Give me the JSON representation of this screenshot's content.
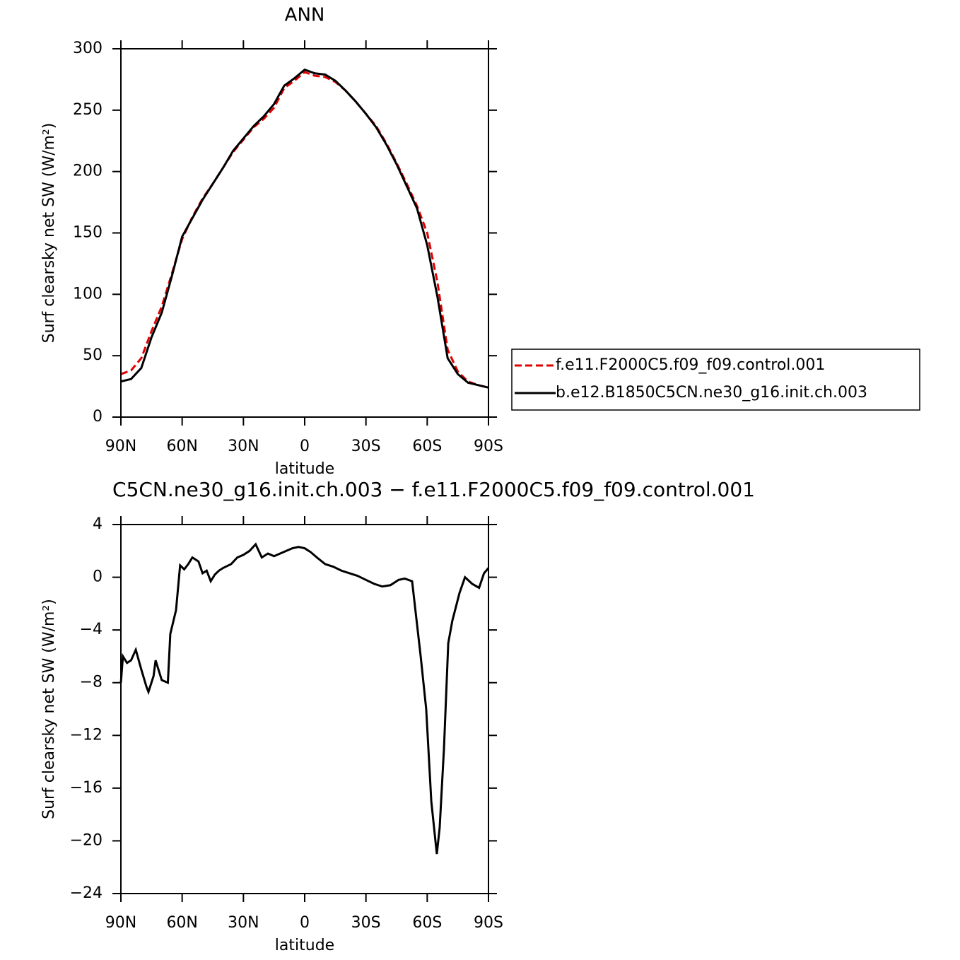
{
  "chart_data": [
    {
      "type": "line",
      "title": "ANN",
      "xlabel": "latitude",
      "ylabel": "Surf clearsky net SW (W/m²)",
      "x": [
        90,
        85,
        80,
        75,
        70,
        65,
        60,
        55,
        50,
        45,
        40,
        35,
        30,
        25,
        20,
        15,
        10,
        5,
        0,
        -5,
        -10,
        -15,
        -20,
        -25,
        -30,
        -35,
        -40,
        -45,
        -50,
        -55,
        -60,
        -65,
        -70,
        -75,
        -80,
        -85,
        -90
      ],
      "series": [
        {
          "name": "f.e11.F2000C5.f09_f09.control.001",
          "color": "#e00000",
          "dashed": true,
          "values": [
            35,
            38,
            48,
            70,
            90,
            117,
            145,
            163,
            178,
            190,
            203,
            216,
            226,
            236,
            243,
            252,
            268,
            274,
            281,
            278,
            277,
            273,
            266,
            257,
            247,
            237,
            223,
            207,
            190,
            172,
            150,
            110,
            55,
            37,
            29,
            26,
            24
          ]
        },
        {
          "name": "b.e12.B1850C5CN.ne30_g16.init.ch.003",
          "color": "#000000",
          "dashed": false,
          "values": [
            29,
            31,
            40,
            65,
            85,
            115,
            147,
            162,
            177,
            190,
            203,
            217,
            227,
            237,
            245,
            255,
            270,
            276,
            283,
            280,
            279,
            274,
            266,
            257,
            247,
            236,
            222,
            206,
            188,
            170,
            140,
            98,
            48,
            35,
            28,
            26,
            24
          ]
        }
      ],
      "xlim": [
        90,
        -90
      ],
      "xticks": [
        {
          "value": 90,
          "label": "90N"
        },
        {
          "value": 60,
          "label": "60N"
        },
        {
          "value": 30,
          "label": "30N"
        },
        0,
        {
          "value": -30,
          "label": "30S"
        },
        {
          "value": -60,
          "label": "60S"
        },
        {
          "value": -90,
          "label": "90S"
        }
      ],
      "ylim": [
        0,
        300
      ],
      "yticks": [
        0,
        50,
        100,
        150,
        200,
        250,
        300
      ]
    },
    {
      "type": "line",
      "title": "C5CN.ne30_g16.init.ch.003 − f.e11.F2000C5.f09_f09.control.001",
      "xlabel": "latitude",
      "ylabel": "Surf clearsky net SW (W/m²)",
      "x": [
        90,
        89,
        87,
        85,
        82.7,
        80,
        77.5,
        76.5,
        74,
        73,
        70,
        67,
        65.8,
        63,
        61,
        59,
        57,
        55,
        52,
        50,
        48,
        46,
        44,
        42,
        40,
        36,
        33,
        30,
        27,
        24,
        21,
        18,
        15,
        12,
        9,
        6,
        3,
        0,
        -3,
        -6,
        -10,
        -14,
        -18,
        -22,
        -26,
        -30,
        -34,
        -38,
        -42,
        -46,
        -49,
        -52.6,
        -56.8,
        -59.5,
        -62,
        -64.7,
        -66.1,
        -68.2,
        -70.3,
        -72.3,
        -75.8,
        -78.5,
        -82,
        -85.4,
        -87.8,
        -90
      ],
      "values": [
        -8,
        -6,
        -6.5,
        -6.3,
        -5.5,
        -7,
        -8.3,
        -8.7,
        -7.5,
        -6.3,
        -7.8,
        -8,
        -4.3,
        -2.5,
        0.9,
        0.6,
        1,
        1.5,
        1.2,
        0.3,
        0.5,
        -0.3,
        0.2,
        0.5,
        0.7,
        1,
        1.5,
        1.7,
        2,
        2.5,
        1.5,
        1.8,
        1.6,
        1.8,
        2,
        2.2,
        2.3,
        2.2,
        1.9,
        1.5,
        1,
        0.8,
        0.5,
        0.3,
        0.1,
        -0.2,
        -0.5,
        -0.7,
        -0.6,
        -0.2,
        -0.1,
        -0.3,
        -6,
        -10,
        -17,
        -21,
        -19,
        -13,
        -5,
        -3.3,
        -1.2,
        0,
        -0.5,
        -0.8,
        0.3,
        0.7
      ],
      "color": "#000000",
      "xlim": [
        90,
        -90
      ],
      "xticks": [
        {
          "value": 90,
          "label": "90N"
        },
        {
          "value": 60,
          "label": "60N"
        },
        {
          "value": 30,
          "label": "30N"
        },
        0,
        {
          "value": -30,
          "label": "30S"
        },
        {
          "value": -60,
          "label": "60S"
        },
        {
          "value": -90,
          "label": "90S"
        }
      ],
      "ylim": [
        -24,
        4
      ],
      "yticks": [
        4,
        0,
        {
          "value": -4,
          "label": "−4"
        },
        {
          "value": -8,
          "label": "−8"
        },
        {
          "value": -12,
          "label": "−12"
        },
        {
          "value": -16,
          "label": "−16"
        },
        {
          "value": -20,
          "label": "−20"
        },
        {
          "value": -24,
          "label": "−24"
        }
      ]
    }
  ]
}
